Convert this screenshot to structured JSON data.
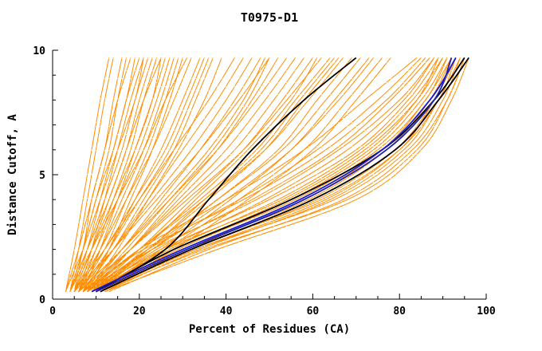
{
  "title": "T0975-D1",
  "chart_data": {
    "type": "line",
    "title": "T0975-D1",
    "xlabel": "Percent of Residues (CA)",
    "ylabel": "Distance Cutoff, A",
    "xlim": [
      0,
      100
    ],
    "ylim": [
      0,
      10
    ],
    "x_ticks": [
      0,
      20,
      40,
      60,
      80,
      100
    ],
    "x_minor_step": 5,
    "y_ticks": [
      0,
      5,
      10
    ],
    "y_minor_step": 1,
    "grid": false,
    "legend": false,
    "model_color": "#ff8c00",
    "texture_dot_color": "#b4ffb4",
    "sample_y": [
      0.3,
      2,
      4,
      6,
      8,
      9.7
    ],
    "model_curves_x": [
      [
        3,
        5,
        7,
        9,
        11,
        13
      ],
      [
        4,
        6,
        8,
        10,
        12,
        14
      ],
      [
        4,
        7,
        9,
        12,
        14,
        16
      ],
      [
        5,
        7,
        10,
        13,
        15,
        17
      ],
      [
        3,
        6,
        9,
        12,
        15,
        18
      ],
      [
        5,
        8,
        11,
        14,
        17,
        19
      ],
      [
        4,
        7,
        10,
        14,
        17,
        20
      ],
      [
        6,
        9,
        12,
        15,
        18,
        21
      ],
      [
        4,
        8,
        12,
        16,
        19,
        22
      ],
      [
        5,
        9,
        13,
        17,
        20,
        23
      ],
      [
        6,
        10,
        14,
        18,
        21,
        24
      ],
      [
        4,
        8,
        13,
        17,
        21,
        25
      ],
      [
        7,
        11,
        15,
        19,
        23,
        26
      ],
      [
        5,
        10,
        15,
        20,
        24,
        27
      ],
      [
        6,
        11,
        16,
        21,
        25,
        28
      ],
      [
        8,
        13,
        18,
        23,
        27,
        30
      ],
      [
        5,
        11,
        17,
        23,
        28,
        32
      ],
      [
        7,
        13,
        19,
        25,
        30,
        34
      ],
      [
        6,
        13,
        20,
        27,
        32,
        36
      ],
      [
        8,
        15,
        22,
        29,
        35,
        39
      ],
      [
        3,
        7,
        11,
        15,
        19,
        21
      ],
      [
        5,
        9,
        14,
        19,
        23,
        25
      ],
      [
        6,
        12,
        17,
        22,
        26,
        29
      ],
      [
        4,
        9,
        15,
        21,
        26,
        31
      ],
      [
        7,
        14,
        21,
        28,
        33,
        37
      ],
      [
        5,
        12,
        19,
        26,
        31,
        35
      ],
      [
        5,
        12,
        20,
        28,
        36,
        42
      ],
      [
        7,
        14,
        22,
        30,
        38,
        44
      ],
      [
        6,
        14,
        23,
        32,
        40,
        46
      ],
      [
        8,
        16,
        25,
        34,
        42,
        48
      ],
      [
        5,
        14,
        24,
        34,
        43,
        50
      ],
      [
        9,
        18,
        28,
        38,
        46,
        52
      ],
      [
        6,
        16,
        27,
        38,
        47,
        54
      ],
      [
        8,
        18,
        29,
        40,
        49,
        56
      ],
      [
        7,
        18,
        30,
        42,
        51,
        58
      ],
      [
        9,
        20,
        32,
        44,
        53,
        60
      ],
      [
        6,
        18,
        31,
        44,
        54,
        62
      ],
      [
        8,
        20,
        34,
        47,
        56,
        64
      ],
      [
        10,
        22,
        36,
        49,
        58,
        66
      ],
      [
        7,
        20,
        35,
        49,
        59,
        67
      ],
      [
        9,
        23,
        38,
        52,
        61,
        69
      ],
      [
        8,
        22,
        38,
        53,
        63,
        71
      ],
      [
        10,
        25,
        41,
        55,
        65,
        73
      ],
      [
        7,
        23,
        40,
        55,
        66,
        74
      ],
      [
        9,
        26,
        43,
        58,
        68,
        76
      ],
      [
        11,
        28,
        45,
        60,
        70,
        78
      ],
      [
        8,
        17,
        27,
        37,
        45,
        50
      ],
      [
        7,
        16,
        26,
        36,
        44,
        49
      ],
      [
        10,
        21,
        33,
        45,
        55,
        61
      ],
      [
        9,
        22,
        35,
        48,
        57,
        65
      ],
      [
        8,
        20,
        40,
        58,
        72,
        84
      ],
      [
        9,
        22,
        43,
        61,
        75,
        85
      ],
      [
        7,
        21,
        44,
        63,
        77,
        86
      ],
      [
        10,
        24,
        46,
        65,
        78,
        87
      ],
      [
        8,
        23,
        47,
        66,
        80,
        88
      ],
      [
        11,
        26,
        49,
        68,
        81,
        88
      ],
      [
        9,
        25,
        50,
        70,
        82,
        89
      ],
      [
        10,
        27,
        52,
        71,
        83,
        90
      ],
      [
        8,
        26,
        53,
        72,
        84,
        90
      ],
      [
        11,
        29,
        55,
        74,
        85,
        91
      ],
      [
        9,
        28,
        56,
        75,
        86,
        91
      ],
      [
        12,
        31,
        58,
        76,
        86,
        92
      ],
      [
        10,
        30,
        59,
        77,
        87,
        92
      ],
      [
        11,
        32,
        61,
        79,
        88,
        93
      ],
      [
        9,
        31,
        62,
        80,
        89,
        93
      ],
      [
        12,
        34,
        64,
        81,
        89,
        94
      ],
      [
        10,
        33,
        65,
        82,
        90,
        94
      ],
      [
        13,
        36,
        67,
        83,
        91,
        95
      ],
      [
        11,
        35,
        68,
        84,
        91,
        95
      ],
      [
        12,
        38,
        70,
        85,
        92,
        96
      ],
      [
        10,
        28,
        54,
        73,
        84,
        89
      ],
      [
        11,
        33,
        63,
        80,
        88,
        93
      ]
    ],
    "highlight_curves": [
      {
        "name": "black-mid-model",
        "color": "#000000",
        "x": [
          10,
          26,
          36,
          46,
          58,
          70
        ]
      },
      {
        "name": "black-right-model-1",
        "color": "#000000",
        "x": [
          11,
          32,
          60,
          79,
          89,
          96
        ]
      },
      {
        "name": "black-right-model-2",
        "color": "#000000",
        "x": [
          10,
          28,
          55,
          76,
          88,
          95
        ]
      },
      {
        "name": "blue-model-1",
        "color": "#1a1acd",
        "x": [
          9,
          30,
          57,
          76,
          87,
          93
        ]
      },
      {
        "name": "blue-model-2",
        "color": "#2222aa",
        "x": [
          10,
          31,
          58,
          77,
          88,
          92
        ]
      }
    ]
  }
}
